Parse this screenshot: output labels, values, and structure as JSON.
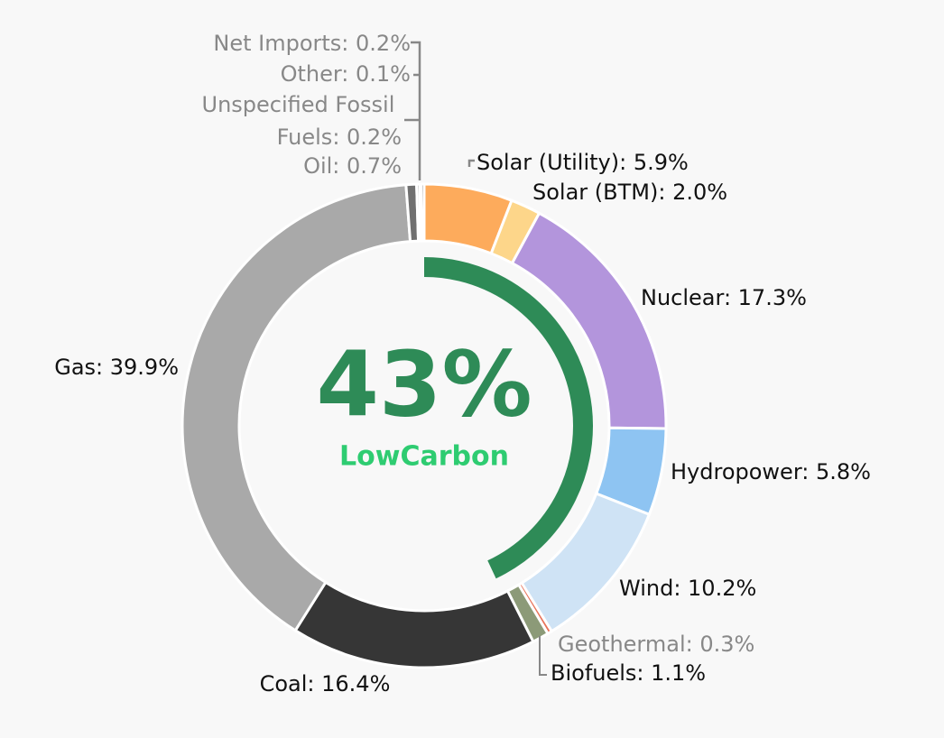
{
  "chart_data": {
    "type": "donut",
    "values": [
      5.9,
      2.0,
      17.3,
      5.8,
      10.2,
      0.3,
      1.1,
      16.4,
      39.9,
      0.7,
      0.2,
      0.1,
      0.2
    ],
    "value_labels": [
      "Solar (Utility): 5.9%",
      "Solar (BTM): 2.0%",
      "Nuclear: 17.3%",
      "Hydropower: 5.8%",
      "Wind: 10.2%",
      "Geothermal: 0.3%",
      "Biofuels: 1.1%",
      "Coal: 16.4%",
      "Gas: 39.9%",
      "Oil: 0.7%",
      "Unspecified Fossil Fuels: 0.2%",
      "Other: 0.1%",
      "Net Imports: 0.2%"
    ],
    "colors": [
      "#fdab5c",
      "#fdd68a",
      "#b395dc",
      "#8ec4f2",
      "#cfe3f5",
      "#e8735a",
      "#8c9a78",
      "#363636",
      "#a9a9a9",
      "#707070",
      "#8a8a8a",
      "#9a9a9a",
      "#666666"
    ],
    "label_colors": [
      "#111111",
      "#111111",
      "#111111",
      "#111111",
      "#111111",
      "#888888",
      "#111111",
      "#111111",
      "#111111",
      "#888888",
      "#888888",
      "#888888",
      "#888888"
    ],
    "low_carbon": {
      "name": "LowCarbon",
      "value": 43,
      "value_label": "43%",
      "color": "#2e8b57",
      "name_color": "#2ecc71"
    }
  }
}
